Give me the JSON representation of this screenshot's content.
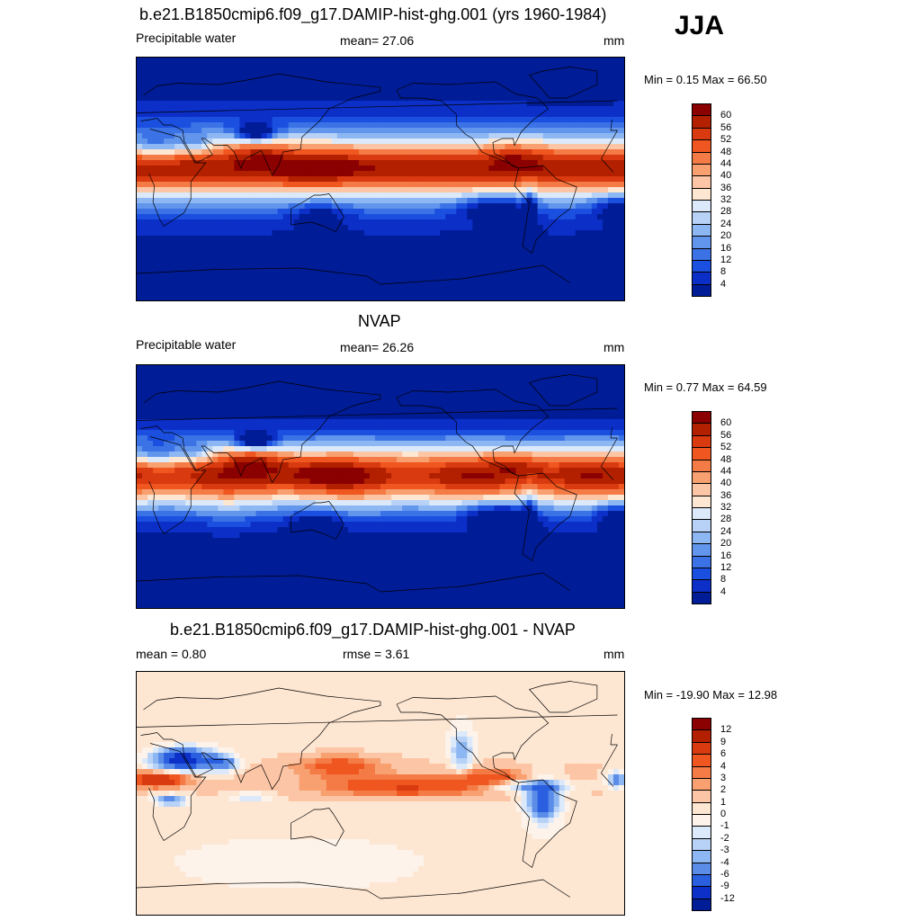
{
  "season": "JJA",
  "panels": [
    {
      "title": "b.e21.B1850cmip6.f09_g17.DAMIP-hist-ghg.001 (yrs 1960-1984)",
      "left_label": "Precipitable water",
      "center_label": "mean=  27.06",
      "units": "mm",
      "minmax": "Min =   0.15 Max =  66.50",
      "colorbar": {
        "colors": [
          "#8b0000",
          "#b22000",
          "#d93a10",
          "#f0561f",
          "#f47b45",
          "#f8a070",
          "#fcc5a5",
          "#fde6d2",
          "#dbe9fa",
          "#b7d2f6",
          "#8db7f2",
          "#6295ec",
          "#3b72e6",
          "#1a4fdf",
          "#0c2fc8",
          "#001c96"
        ],
        "labels": [
          "60",
          "56",
          "52",
          "48",
          "44",
          "40",
          "36",
          "32",
          "28",
          "24",
          "20",
          "16",
          "12",
          "8",
          "4"
        ]
      }
    },
    {
      "title": "NVAP",
      "left_label": "Precipitable water",
      "center_label": "mean=  26.26",
      "units": "mm",
      "minmax": "Min =   0.77 Max =  64.59",
      "colorbar": {
        "colors": [
          "#8b0000",
          "#b22000",
          "#d93a10",
          "#f0561f",
          "#f47b45",
          "#f8a070",
          "#fcc5a5",
          "#fde6d2",
          "#dbe9fa",
          "#b7d2f6",
          "#8db7f2",
          "#6295ec",
          "#3b72e6",
          "#1a4fdf",
          "#0c2fc8",
          "#001c96"
        ],
        "labels": [
          "60",
          "56",
          "52",
          "48",
          "44",
          "40",
          "36",
          "32",
          "28",
          "24",
          "20",
          "16",
          "12",
          "8",
          "4"
        ]
      }
    },
    {
      "title": "b.e21.B1850cmip6.f09_g17.DAMIP-hist-ghg.001 - NVAP",
      "left_label": "mean =   0.80",
      "center_label": "rmse =   3.61",
      "units": "mm",
      "minmax": "Min = -19.90 Max =  12.98",
      "colorbar": {
        "colors": [
          "#8b0000",
          "#b22000",
          "#d93a10",
          "#f0561f",
          "#f47b45",
          "#f8a070",
          "#fcc5a5",
          "#fde6d2",
          "#fdf3ea",
          "#dbe9fa",
          "#b7d2f6",
          "#8db7f2",
          "#5a8ce8",
          "#2a5fe0",
          "#0c30c8",
          "#001c96"
        ],
        "labels": [
          "12",
          "9",
          "6",
          "4",
          "3",
          "2",
          "1",
          "0",
          "-1",
          "-2",
          "-3",
          "-4",
          "-6",
          "-9",
          "-12"
        ]
      }
    }
  ],
  "chart_data": [
    {
      "type": "heatmap",
      "title": "b.e21.B1850cmip6.f09_g17.DAMIP-hist-ghg.001 (yrs 1960-1984)",
      "variable": "Precipitable water",
      "units": "mm",
      "mean": 27.06,
      "min": 0.15,
      "max": 66.5,
      "contour_levels": [
        4,
        8,
        12,
        16,
        20,
        24,
        28,
        32,
        36,
        40,
        44,
        48,
        52,
        56,
        60
      ],
      "colors": [
        "#001c96",
        "#0c2fc8",
        "#1a4fdf",
        "#3b72e6",
        "#6295ec",
        "#8db7f2",
        "#b7d2f6",
        "#dbe9fa",
        "#fde6d2",
        "#fcc5a5",
        "#f8a070",
        "#f47b45",
        "#f0561f",
        "#d93a10",
        "#b22000",
        "#8b0000"
      ],
      "field": "ghg"
    },
    {
      "type": "heatmap",
      "title": "NVAP",
      "variable": "Precipitable water",
      "units": "mm",
      "mean": 26.26,
      "min": 0.77,
      "max": 64.59,
      "contour_levels": [
        4,
        8,
        12,
        16,
        20,
        24,
        28,
        32,
        36,
        40,
        44,
        48,
        52,
        56,
        60
      ],
      "colors": [
        "#001c96",
        "#0c2fc8",
        "#1a4fdf",
        "#3b72e6",
        "#6295ec",
        "#8db7f2",
        "#b7d2f6",
        "#dbe9fa",
        "#fde6d2",
        "#fcc5a5",
        "#f8a070",
        "#f47b45",
        "#f0561f",
        "#d93a10",
        "#b22000",
        "#8b0000"
      ],
      "field": "nvap"
    },
    {
      "type": "heatmap",
      "title": "b.e21.B1850cmip6.f09_g17.DAMIP-hist-ghg.001 - NVAP",
      "units": "mm",
      "mean": 0.8,
      "rmse": 3.61,
      "min": -19.9,
      "max": 12.98,
      "contour_levels": [
        -12,
        -9,
        -6,
        -4,
        -3,
        -2,
        -1,
        0,
        1,
        2,
        3,
        4,
        6,
        9,
        12
      ],
      "colors": [
        "#001c96",
        "#0c30c8",
        "#2a5fe0",
        "#5a8ce8",
        "#8db7f2",
        "#b7d2f6",
        "#dbe9fa",
        "#fdf3ea",
        "#fde6d2",
        "#fcc5a5",
        "#f8a070",
        "#f47b45",
        "#f0561f",
        "#d93a10",
        "#b22000",
        "#8b0000"
      ],
      "field": "diff"
    }
  ]
}
